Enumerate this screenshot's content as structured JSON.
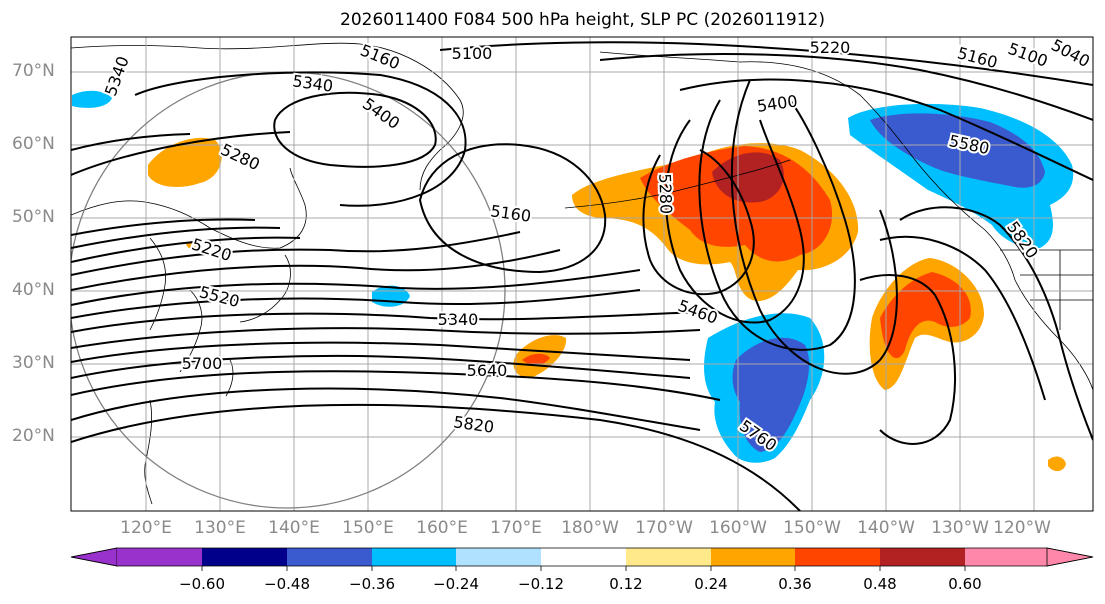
{
  "title": "2026011400 F084 500 hPa height, SLP PC (2026011912)",
  "lat_labels": [
    "70°N",
    "60°N",
    "50°N",
    "40°N",
    "30°N",
    "20°N"
  ],
  "lon_labels": [
    "120°E",
    "130°E",
    "140°E",
    "150°E",
    "160°E",
    "170°E",
    "180°W",
    "170°W",
    "160°W",
    "150°W",
    "140°W",
    "130°W",
    "120°W"
  ],
  "contour_labels": [
    "5160",
    "5100",
    "5220",
    "5160",
    "5100",
    "5040",
    "5340",
    "5340",
    "5400",
    "5400",
    "5280",
    "5580",
    "5280",
    "5160",
    "5220",
    "5820",
    "5520",
    "5340",
    "5460",
    "5700",
    "5640",
    "5820",
    "5760"
  ],
  "colorbar": {
    "ticks": [
      "−0.60",
      "−0.48",
      "−0.36",
      "−0.24",
      "−0.12",
      "0.12",
      "0.24",
      "0.36",
      "0.48",
      "0.60"
    ],
    "colors": [
      "#9932cc",
      "#00008b",
      "#3a5bd0",
      "#00bfff",
      "#b0e2ff",
      "#ffffff",
      "#ffe98a",
      "#ffa500",
      "#ff4500",
      "#b22222",
      "#ff88aa"
    ]
  }
}
